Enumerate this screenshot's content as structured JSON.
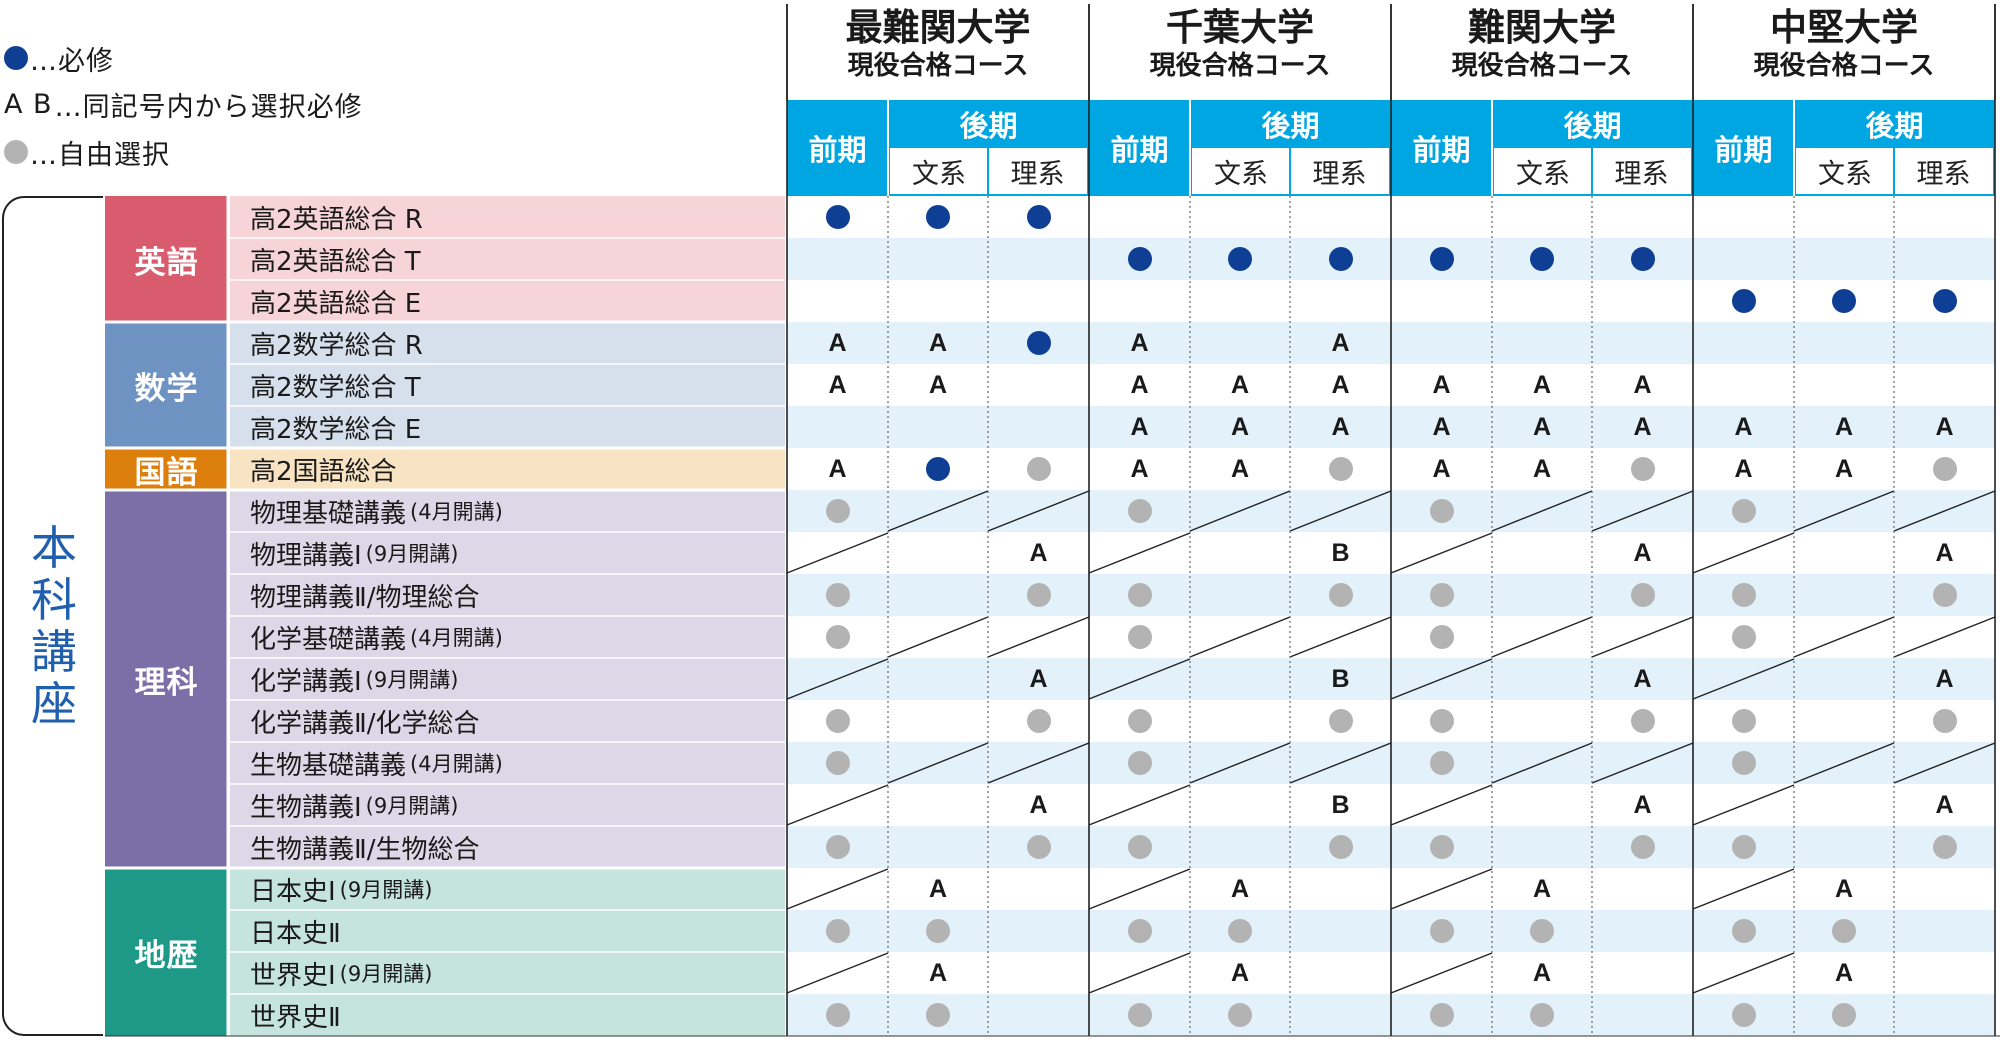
{
  "legend": [
    {
      "marker": "dot",
      "color": "#0f3f94",
      "text": "…必修"
    },
    {
      "marker": "text",
      "symbol": "A B",
      "text": "…同記号内から選択必修"
    },
    {
      "marker": "dot",
      "color": "#b3b3b3",
      "text": "…自由選択"
    }
  ],
  "universities": [
    {
      "name": "最難関大学",
      "sub": "現役合格コース"
    },
    {
      "name": "千葉大学",
      "sub": "現役合格コース"
    },
    {
      "name": "難関大学",
      "sub": "現役合格コース"
    },
    {
      "name": "中堅大学",
      "sub": "現役合格コース"
    }
  ],
  "term_labels": {
    "first": "前期",
    "second": "後期",
    "humanities": "文系",
    "sciences": "理系"
  },
  "section_label": "本科講座",
  "colors": {
    "header_blue": "#00a6e2",
    "required": "#0f3f94",
    "optional": "#b3b3b3",
    "stripe": "#e3f1fb"
  },
  "subjects": [
    {
      "label": "英語",
      "color": "#d95c6e",
      "light": "#f6d4d7"
    },
    {
      "label": "数学",
      "color": "#6e92c2",
      "light": "#d6dfec"
    },
    {
      "label": "国語",
      "color": "#dc7f0d",
      "light": "#f8e4c2"
    },
    {
      "label": "理科",
      "color": "#7c6ea6",
      "light": "#ddd8e8"
    },
    {
      "label": "地歴",
      "color": "#1e9987",
      "light": "#c6e4de"
    }
  ],
  "courses": [
    {
      "name": "高2英語総合 R",
      "note": "",
      "subject": 0
    },
    {
      "name": "高2英語総合 T",
      "note": "",
      "subject": 0
    },
    {
      "name": "高2英語総合 E",
      "note": "",
      "subject": 0
    },
    {
      "name": "高2数学総合 R",
      "note": "",
      "subject": 1
    },
    {
      "name": "高2数学総合 T",
      "note": "",
      "subject": 1
    },
    {
      "name": "高2数学総合 E",
      "note": "",
      "subject": 1
    },
    {
      "name": "高2国語総合",
      "note": "",
      "subject": 2
    },
    {
      "name": "物理基礎講義",
      "note": "(4月開講)",
      "subject": 3
    },
    {
      "name": "物理講義Ⅰ",
      "note": "(9月開講)",
      "subject": 3
    },
    {
      "name": "物理講義Ⅱ/物理総合",
      "note": "",
      "subject": 3
    },
    {
      "name": "化学基礎講義",
      "note": "(4月開講)",
      "subject": 3
    },
    {
      "name": "化学講義Ⅰ",
      "note": "(9月開講)",
      "subject": 3
    },
    {
      "name": "化学講義Ⅱ/化学総合",
      "note": "",
      "subject": 3
    },
    {
      "name": "生物基礎講義",
      "note": "(4月開講)",
      "subject": 3
    },
    {
      "name": "生物講義Ⅰ",
      "note": "(9月開講)",
      "subject": 3
    },
    {
      "name": "生物講義Ⅱ/生物総合",
      "note": "",
      "subject": 3
    },
    {
      "name": "日本史Ⅰ",
      "note": "(9月開講)",
      "subject": 4
    },
    {
      "name": "日本史Ⅱ",
      "note": "",
      "subject": 4
    },
    {
      "name": "世界史Ⅰ",
      "note": "(9月開講)",
      "subject": 4
    },
    {
      "name": "世界史Ⅱ",
      "note": "",
      "subject": 4
    }
  ],
  "matrix": [
    [
      "R",
      "R",
      "R",
      "",
      "",
      "",
      "",
      "",
      "",
      "",
      "",
      ""
    ],
    [
      "",
      "",
      "",
      "R",
      "R",
      "R",
      "R",
      "R",
      "R",
      "",
      "",
      ""
    ],
    [
      "",
      "",
      "",
      "",
      "",
      "",
      "",
      "",
      "",
      "R",
      "R",
      "R"
    ],
    [
      "A",
      "A",
      "R",
      "A",
      "",
      "A",
      "",
      "",
      "",
      "",
      "",
      ""
    ],
    [
      "A",
      "A",
      "",
      "A",
      "A",
      "A",
      "A",
      "A",
      "A",
      "",
      "",
      ""
    ],
    [
      "",
      "",
      "",
      "A",
      "A",
      "A",
      "A",
      "A",
      "A",
      "A",
      "A",
      "A"
    ],
    [
      "A",
      "R",
      "O",
      "A",
      "A",
      "O",
      "A",
      "A",
      "O",
      "A",
      "A",
      "O"
    ],
    [
      "O",
      "/",
      "/",
      "O",
      "/",
      "/",
      "O",
      "/",
      "/",
      "O",
      "/",
      "/"
    ],
    [
      "/",
      "",
      "A",
      "/",
      "",
      "B",
      "/",
      "",
      "A",
      "/",
      "",
      "A"
    ],
    [
      "O",
      "",
      "O",
      "O",
      "",
      "O",
      "O",
      "",
      "O",
      "O",
      "",
      "O"
    ],
    [
      "O",
      "/",
      "/",
      "O",
      "/",
      "/",
      "O",
      "/",
      "/",
      "O",
      "/",
      "/"
    ],
    [
      "/",
      "",
      "A",
      "/",
      "",
      "B",
      "/",
      "",
      "A",
      "/",
      "",
      "A"
    ],
    [
      "O",
      "",
      "O",
      "O",
      "",
      "O",
      "O",
      "",
      "O",
      "O",
      "",
      "O"
    ],
    [
      "O",
      "/",
      "/",
      "O",
      "/",
      "/",
      "O",
      "/",
      "/",
      "O",
      "/",
      "/"
    ],
    [
      "/",
      "",
      "A",
      "/",
      "",
      "B",
      "/",
      "",
      "A",
      "/",
      "",
      "A"
    ],
    [
      "O",
      "",
      "O",
      "O",
      "",
      "O",
      "O",
      "",
      "O",
      "O",
      "",
      "O"
    ],
    [
      "/",
      "A",
      "",
      "/",
      "A",
      "",
      "/",
      "A",
      "",
      "/",
      "A",
      ""
    ],
    [
      "O",
      "O",
      "",
      "O",
      "O",
      "",
      "O",
      "O",
      "",
      "O",
      "O",
      ""
    ],
    [
      "/",
      "A",
      "",
      "/",
      "A",
      "",
      "/",
      "A",
      "",
      "/",
      "A",
      ""
    ],
    [
      "O",
      "O",
      "",
      "O",
      "O",
      "",
      "O",
      "O",
      "",
      "O",
      "O",
      ""
    ]
  ]
}
